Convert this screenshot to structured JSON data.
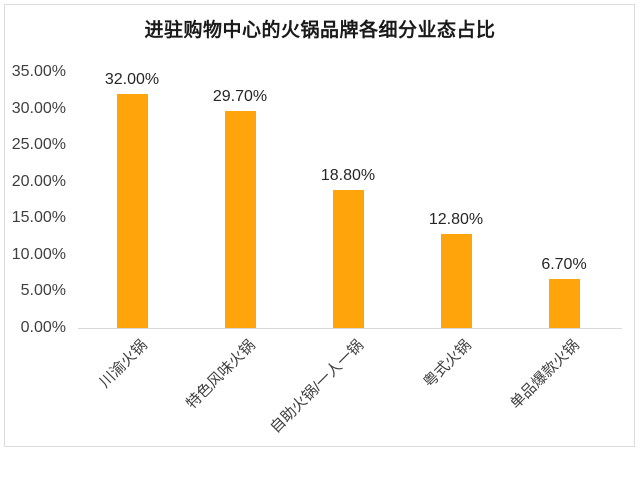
{
  "chart_data": {
    "type": "bar",
    "title": "进驻购物中心的火锅品牌各细分业态占比",
    "categories": [
      "川渝火锅",
      "特色风味火锅",
      "自助火锅/一人一锅",
      "粤式火锅",
      "单品爆款火锅"
    ],
    "values": [
      32.0,
      29.7,
      18.8,
      12.8,
      6.7
    ],
    "data_labels": [
      "32.00%",
      "29.70%",
      "18.80%",
      "12.80%",
      "6.70%"
    ],
    "y_ticks": [
      "0.00%",
      "5.00%",
      "10.00%",
      "15.00%",
      "20.00%",
      "25.00%",
      "30.00%",
      "35.00%"
    ],
    "y_tick_values": [
      0,
      5,
      10,
      15,
      20,
      25,
      30,
      35
    ],
    "xlabel": "",
    "ylabel": "",
    "ylim": [
      0,
      35
    ],
    "grid": false,
    "legend": "none",
    "bar_color": "#FFA40A",
    "axis_line_color": "#D9D9D9",
    "frame_color": "#DCDCDC",
    "title_color": "#1A1A1A",
    "tick_text_color": "#3F3F3F",
    "data_label_color": "#262626"
  }
}
